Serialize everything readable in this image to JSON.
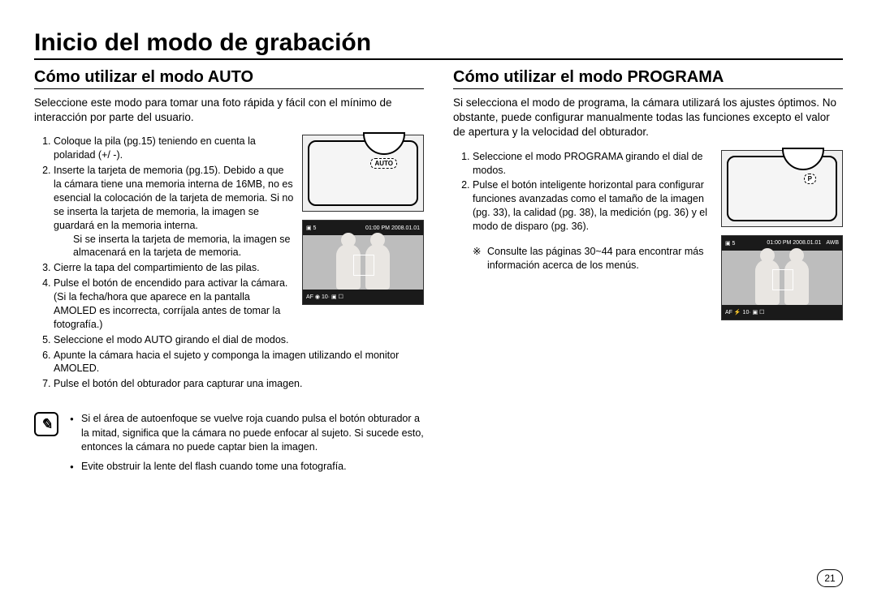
{
  "title": "Inicio del modo de grabación",
  "page_number": "21",
  "colors": {
    "text": "#000000",
    "bg": "#ffffff",
    "rule": "#000000",
    "lcd_bar": "#1a1a1a",
    "lcd_bg": "#bdbdbd",
    "skin": "#e9e6e2"
  },
  "left": {
    "heading": "Cómo utilizar el modo AUTO",
    "intro": "Seleccione este modo para tomar una foto rápida y fácil con el mínimo de interacción por parte del usuario.",
    "dial_label": "AUTO",
    "steps": [
      "Coloque la pila (pg.15) teniendo en cuenta la polaridad (+/ -).",
      "Inserte la tarjeta de memoria (pg.15). Debido a que la cámara tiene una memoria interna de 16MB, no es esencial la colocación de la tarjeta de memoria. Si no se inserta la tarjeta de memoria, la imagen se guardará en la memoria interna.",
      "Cierre la tapa del compartimiento de las pilas.",
      "Pulse el botón de encendido para activar la cámara. (Si la fecha/hora que aparece en la pantalla AMOLED es incorrecta, corríjala antes de tomar la fotografía.)",
      "Seleccione el modo AUTO girando el dial de modos.",
      "Apunte la cámara hacia el sujeto y componga la imagen utilizando el monitor AMOLED.",
      "Pulse el botón del obturador para capturar una imagen."
    ],
    "step2_sub": "Si se inserta la tarjeta de memoria, la imagen se almacenará en la tarjeta de memoria.",
    "lcd": {
      "top_left": "▣ 5",
      "top_right": "01:00 PM 2008.01.01",
      "bottom": "AF   ◉   10·   ▣   ☐"
    },
    "notes": [
      "Si el área de autoenfoque se vuelve roja cuando pulsa el botón obturador a la mitad, significa que la cámara no puede enfocar al sujeto. Si sucede esto, entonces la cámara no puede captar bien la imagen.",
      "Evite obstruir la lente del flash cuando tome una fotografía."
    ]
  },
  "right": {
    "heading": "Cómo utilizar el modo PROGRAMA",
    "intro": "Si selecciona el modo de programa, la cámara utilizará los ajustes óptimos. No obstante, puede configurar manualmente todas las funciones excepto el valor de apertura y la velocidad del obturador.",
    "dial_label": "P",
    "steps": [
      "Seleccione el modo PROGRAMA girando el dial de modos.",
      "Pulse el botón inteligente horizontal para configurar funciones avanzadas como el tamaño de la imagen (pg. 33), la calidad (pg. 38), la medición (pg. 36) y el modo de disparo (pg. 36)."
    ],
    "lcd": {
      "top_left": "▣ 5",
      "top_right_a": "01:00 PM 2008.01.01",
      "top_right_b": "AWB",
      "bottom": "AF   ⚡   10·   ▣   ☐"
    },
    "ref_note": "Consulte las páginas 30~44 para encontrar más información acerca de los menús."
  }
}
